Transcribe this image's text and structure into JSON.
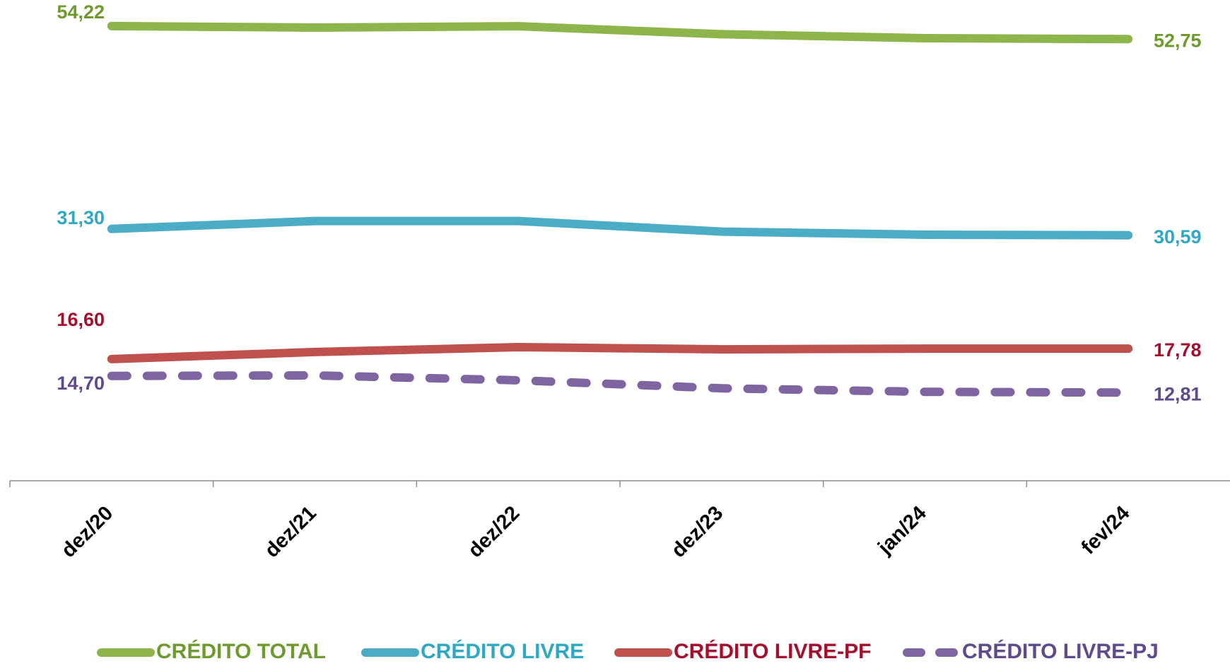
{
  "chart_data": {
    "type": "line",
    "title": "",
    "xlabel": "",
    "ylabel": "",
    "categories": [
      "dez/20",
      "dez/21",
      "dez/22",
      "dez/23",
      "jan/24",
      "fev/24"
    ],
    "ylim": [
      0,
      56
    ],
    "grid": false,
    "legend_position": "bottom",
    "series": [
      {
        "name": "CRÉDITO TOTAL",
        "values": [
          54.22,
          54.05,
          54.2,
          53.3,
          52.85,
          52.75
        ],
        "color": "#8DB54B",
        "label_color": "#6E9A2E",
        "dashed": false,
        "start_label": "54,22",
        "end_label": "52,75"
      },
      {
        "name": "CRÉDITO LIVRE",
        "values": [
          31.3,
          32.2,
          32.2,
          31.0,
          30.65,
          30.59
        ],
        "color": "#4BACC6",
        "label_color": "#2FA8C3",
        "dashed": false,
        "start_label": "31,30",
        "end_label": "30,59"
      },
      {
        "name": "CRÉDITO LIVRE-PF",
        "values": [
          16.6,
          17.4,
          17.95,
          17.7,
          17.78,
          17.78
        ],
        "color": "#C0504D",
        "label_color": "#A50F2D",
        "dashed": false,
        "start_label": "16,60",
        "end_label": "17,78"
      },
      {
        "name": "CRÉDITO LIVRE-PJ",
        "values": [
          14.7,
          14.75,
          14.2,
          13.3,
          12.9,
          12.81
        ],
        "color": "#8064A2",
        "label_color": "#5F4B8B",
        "dashed": true,
        "start_label": "14,70",
        "end_label": "12,81"
      }
    ]
  }
}
